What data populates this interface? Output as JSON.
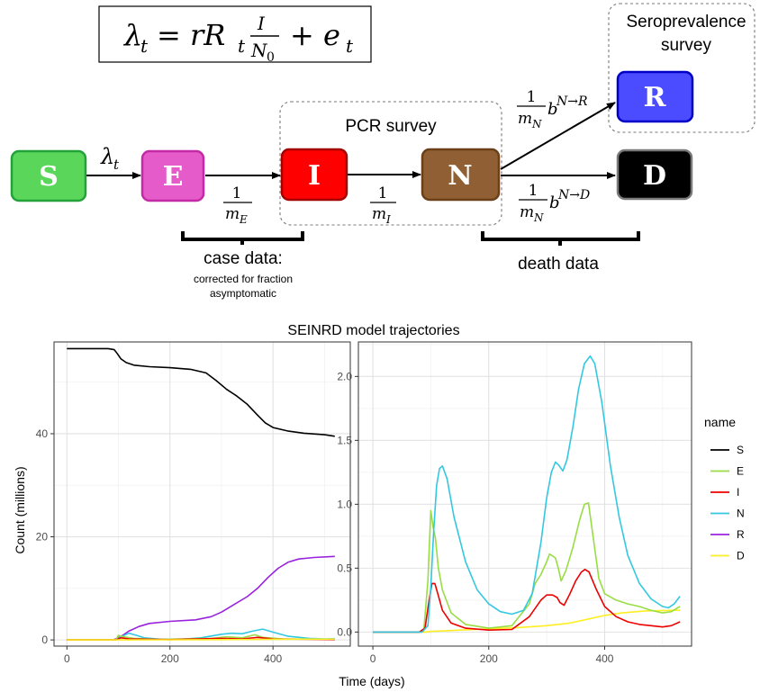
{
  "diagram": {
    "formula": {
      "lhs": "λ",
      "lhs_sub": "t",
      "eq": "= rR",
      "r_sub": "t",
      "frac_num": "I",
      "frac_den": "N",
      "frac_den_sub": "0",
      "plus": "+ e",
      "e_sub": "t"
    },
    "compartments": [
      {
        "key": "S",
        "label": "S",
        "color": "#5ad65a",
        "border": "#23a23a"
      },
      {
        "key": "E",
        "label": "E",
        "color": "#e45bc9",
        "border": "#c52aa6"
      },
      {
        "key": "I",
        "label": "I",
        "color": "#ff0000",
        "border": "#a30000"
      },
      {
        "key": "N",
        "label": "N",
        "color": "#915f34",
        "border": "#6b4019"
      },
      {
        "key": "R",
        "label": "R",
        "color": "#4b4bff",
        "border": "#0000c8"
      },
      {
        "key": "D",
        "label": "D",
        "color": "#000000",
        "border": "#7a7a7a"
      }
    ],
    "transitions": {
      "s_to_e": {
        "symbol": "λ",
        "sub": "t"
      },
      "e_to_i": {
        "num": "1",
        "den": "m",
        "den_sub": "E"
      },
      "i_to_n": {
        "num": "1",
        "den": "m",
        "den_sub": "I"
      },
      "n_to_r": {
        "num": "1",
        "den": "m",
        "den_sub": "N",
        "b": "b",
        "sup": "N→R"
      },
      "n_to_d": {
        "num": "1",
        "den": "m",
        "den_sub": "N",
        "b": "b",
        "sup": "N→D"
      }
    },
    "surveys": {
      "pcr": "PCR survey",
      "sero_line1": "Seroprevalence",
      "sero_line2": "survey"
    },
    "data_brackets": {
      "case_title": "case data:",
      "case_note_line1": "corrected for fraction",
      "case_note_line2": "asymptomatic",
      "death_title": "death data"
    }
  },
  "chart_data": {
    "type": "line",
    "title": "SEINRD model trajectories",
    "xlabel": "Time (days)",
    "ylabel": "Count (millions)",
    "legend_title": "name",
    "legend_position": "right",
    "grid": true,
    "series_colors": {
      "S": "#000000",
      "E": "#99dd44",
      "I": "#ee0000",
      "N": "#33c8e0",
      "R": "#9922dd",
      "D": "#ffee22"
    },
    "legend": [
      "S",
      "E",
      "I",
      "N",
      "R",
      "D"
    ],
    "panels": [
      {
        "name": "left",
        "xlim": [
          -25,
          550
        ],
        "ylim": [
          -1.2,
          57.8
        ],
        "x_ticks": [
          0,
          200,
          400
        ],
        "y_ticks": [
          0,
          20,
          40
        ],
        "series": [
          {
            "name": "S",
            "points": [
              [
                0,
                56.5
              ],
              [
                80,
                56.5
              ],
              [
                92,
                56.3
              ],
              [
                98,
                55.5
              ],
              [
                105,
                54.5
              ],
              [
                115,
                53.8
              ],
              [
                130,
                53.3
              ],
              [
                160,
                53.0
              ],
              [
                200,
                52.8
              ],
              [
                240,
                52.5
              ],
              [
                270,
                51.8
              ],
              [
                290,
                50.3
              ],
              [
                310,
                48.6
              ],
              [
                330,
                47.3
              ],
              [
                350,
                45.7
              ],
              [
                370,
                43.6
              ],
              [
                385,
                42.1
              ],
              [
                400,
                41.2
              ],
              [
                430,
                40.5
              ],
              [
                460,
                40.1
              ],
              [
                500,
                39.8
              ],
              [
                520,
                39.5
              ]
            ]
          },
          {
            "name": "R",
            "points": [
              [
                0,
                0
              ],
              [
                90,
                0
              ],
              [
                100,
                0.4
              ],
              [
                110,
                1.0
              ],
              [
                120,
                1.7
              ],
              [
                140,
                2.6
              ],
              [
                160,
                3.2
              ],
              [
                200,
                3.6
              ],
              [
                250,
                3.9
              ],
              [
                280,
                4.5
              ],
              [
                300,
                5.4
              ],
              [
                320,
                6.6
              ],
              [
                350,
                8.4
              ],
              [
                370,
                10.0
              ],
              [
                390,
                12.1
              ],
              [
                410,
                13.9
              ],
              [
                430,
                15.1
              ],
              [
                450,
                15.7
              ],
              [
                480,
                16.0
              ],
              [
                520,
                16.2
              ]
            ]
          },
          {
            "name": "N",
            "points": [
              [
                0,
                0
              ],
              [
                95,
                0
              ],
              [
                105,
                0.6
              ],
              [
                120,
                1.3
              ],
              [
                135,
                0.9
              ],
              [
                150,
                0.4
              ],
              [
                180,
                0.15
              ],
              [
                220,
                0.1
              ],
              [
                260,
                0.4
              ],
              [
                300,
                1.1
              ],
              [
                320,
                1.3
              ],
              [
                340,
                1.2
              ],
              [
                360,
                1.7
              ],
              [
                380,
                2.1
              ],
              [
                400,
                1.5
              ],
              [
                430,
                0.7
              ],
              [
                470,
                0.3
              ],
              [
                500,
                0.2
              ],
              [
                520,
                0.25
              ]
            ]
          },
          {
            "name": "E",
            "points": [
              [
                0,
                0
              ],
              [
                95,
                0
              ],
              [
                100,
                0.9
              ],
              [
                110,
                0.6
              ],
              [
                130,
                0.3
              ],
              [
                180,
                0.1
              ],
              [
                280,
                0.3
              ],
              [
                310,
                0.6
              ],
              [
                340,
                0.4
              ],
              [
                365,
                1.0
              ],
              [
                380,
                0.5
              ],
              [
                420,
                0.2
              ],
              [
                520,
                0.15
              ]
            ]
          },
          {
            "name": "I",
            "points": [
              [
                0,
                0
              ],
              [
                95,
                0
              ],
              [
                105,
                0.4
              ],
              [
                120,
                0.2
              ],
              [
                200,
                0.05
              ],
              [
                300,
                0.3
              ],
              [
                340,
                0.2
              ],
              [
                370,
                0.5
              ],
              [
                400,
                0.2
              ],
              [
                520,
                0.08
              ]
            ]
          },
          {
            "name": "D",
            "points": [
              [
                0,
                0
              ],
              [
                100,
                0
              ],
              [
                200,
                0.02
              ],
              [
                300,
                0.06
              ],
              [
                400,
                0.12
              ],
              [
                520,
                0.17
              ]
            ]
          }
        ]
      },
      {
        "name": "right",
        "xlim": [
          -25,
          550
        ],
        "ylim": [
          -0.11,
          2.27
        ],
        "x_ticks": [
          0,
          200,
          400
        ],
        "y_ticks": [
          0.0,
          0.5,
          1.0,
          1.5,
          2.0
        ],
        "y_tick_labels": [
          "0.0",
          "0.5",
          "1.0",
          "1.5",
          "2.0"
        ],
        "series": [
          {
            "name": "D",
            "points": [
              [
                0,
                0
              ],
              [
                90,
                0
              ],
              [
                100,
                0.005
              ],
              [
                150,
                0.015
              ],
              [
                200,
                0.025
              ],
              [
                250,
                0.035
              ],
              [
                300,
                0.05
              ],
              [
                340,
                0.07
              ],
              [
                370,
                0.1
              ],
              [
                400,
                0.13
              ],
              [
                430,
                0.15
              ],
              [
                470,
                0.165
              ],
              [
                520,
                0.17
              ],
              [
                530,
                0.17
              ]
            ]
          },
          {
            "name": "E",
            "points": [
              [
                0,
                0
              ],
              [
                80,
                0
              ],
              [
                88,
                0.02
              ],
              [
                95,
                0.4
              ],
              [
                100,
                0.95
              ],
              [
                104,
                0.82
              ],
              [
                108,
                0.73
              ],
              [
                113,
                0.5
              ],
              [
                120,
                0.33
              ],
              [
                135,
                0.15
              ],
              [
                160,
                0.06
              ],
              [
                200,
                0.03
              ],
              [
                240,
                0.05
              ],
              [
                270,
                0.22
              ],
              [
                280,
                0.38
              ],
              [
                290,
                0.45
              ],
              [
                300,
                0.55
              ],
              [
                305,
                0.61
              ],
              [
                315,
                0.58
              ],
              [
                320,
                0.5
              ],
              [
                325,
                0.4
              ],
              [
                333,
                0.48
              ],
              [
                345,
                0.66
              ],
              [
                357,
                0.88
              ],
              [
                365,
                1.0
              ],
              [
                372,
                1.01
              ],
              [
                380,
                0.75
              ],
              [
                390,
                0.42
              ],
              [
                400,
                0.3
              ],
              [
                420,
                0.25
              ],
              [
                440,
                0.22
              ],
              [
                460,
                0.2
              ],
              [
                480,
                0.17
              ],
              [
                500,
                0.15
              ],
              [
                515,
                0.16
              ],
              [
                530,
                0.2
              ]
            ]
          },
          {
            "name": "I",
            "points": [
              [
                0,
                0
              ],
              [
                80,
                0
              ],
              [
                90,
                0.03
              ],
              [
                97,
                0.25
              ],
              [
                102,
                0.38
              ],
              [
                107,
                0.38
              ],
              [
                112,
                0.3
              ],
              [
                120,
                0.17
              ],
              [
                135,
                0.07
              ],
              [
                160,
                0.03
              ],
              [
                200,
                0.015
              ],
              [
                240,
                0.02
              ],
              [
                270,
                0.12
              ],
              [
                290,
                0.25
              ],
              [
                300,
                0.29
              ],
              [
                310,
                0.29
              ],
              [
                318,
                0.27
              ],
              [
                323,
                0.23
              ],
              [
                330,
                0.21
              ],
              [
                340,
                0.3
              ],
              [
                350,
                0.4
              ],
              [
                360,
                0.47
              ],
              [
                366,
                0.49
              ],
              [
                373,
                0.47
              ],
              [
                385,
                0.34
              ],
              [
                400,
                0.2
              ],
              [
                420,
                0.12
              ],
              [
                440,
                0.08
              ],
              [
                460,
                0.06
              ],
              [
                480,
                0.05
              ],
              [
                500,
                0.04
              ],
              [
                515,
                0.05
              ],
              [
                530,
                0.08
              ]
            ]
          },
          {
            "name": "N",
            "points": [
              [
                0,
                0
              ],
              [
                85,
                0
              ],
              [
                95,
                0.05
              ],
              [
                100,
                0.35
              ],
              [
                105,
                0.8
              ],
              [
                110,
                1.15
              ],
              [
                115,
                1.28
              ],
              [
                120,
                1.3
              ],
              [
                128,
                1.2
              ],
              [
                140,
                0.9
              ],
              [
                160,
                0.55
              ],
              [
                180,
                0.33
              ],
              [
                200,
                0.22
              ],
              [
                220,
                0.16
              ],
              [
                240,
                0.14
              ],
              [
                260,
                0.17
              ],
              [
                275,
                0.3
              ],
              [
                290,
                0.7
              ],
              [
                300,
                1.05
              ],
              [
                308,
                1.25
              ],
              [
                315,
                1.33
              ],
              [
                320,
                1.31
              ],
              [
                328,
                1.26
              ],
              [
                335,
                1.35
              ],
              [
                345,
                1.6
              ],
              [
                355,
                1.9
              ],
              [
                365,
                2.1
              ],
              [
                375,
                2.16
              ],
              [
                383,
                2.1
              ],
              [
                395,
                1.8
              ],
              [
                410,
                1.3
              ],
              [
                425,
                0.9
              ],
              [
                440,
                0.6
              ],
              [
                460,
                0.38
              ],
              [
                480,
                0.26
              ],
              [
                500,
                0.2
              ],
              [
                510,
                0.19
              ],
              [
                520,
                0.22
              ],
              [
                530,
                0.28
              ]
            ]
          }
        ]
      }
    ]
  }
}
